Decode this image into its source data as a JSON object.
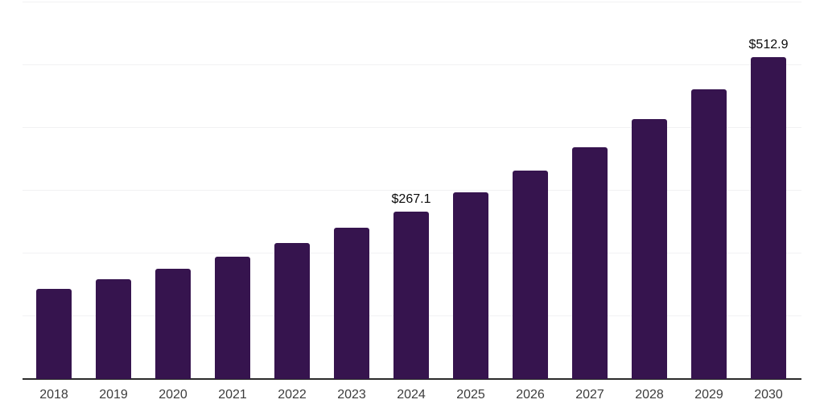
{
  "chart_data": {
    "type": "bar",
    "title": "",
    "xlabel": "",
    "ylabel": "",
    "categories": [
      "2018",
      "2019",
      "2020",
      "2021",
      "2022",
      "2023",
      "2024",
      "2025",
      "2026",
      "2027",
      "2028",
      "2029",
      "2030"
    ],
    "values": [
      144.2,
      159.1,
      176.2,
      194.8,
      217.2,
      241.5,
      267.1,
      297.7,
      332.0,
      368.9,
      413.9,
      462.0,
      512.9
    ],
    "data_labels": [
      "",
      "",
      "",
      "",
      "",
      "",
      "$267.1",
      "",
      "",
      "",
      "",
      "",
      "$512.9"
    ],
    "ylim": [
      0,
      600
    ],
    "gridline_step": 100,
    "grid": "horizontal-only",
    "legend": "none",
    "colors": {
      "bar": "#36144E",
      "axis_line": "#2B2B2B",
      "gridline": "#F2F2F3",
      "tick_label": "#3C3C3C",
      "value_label": "#0A0A0A",
      "background": "#FFFFFF"
    }
  }
}
